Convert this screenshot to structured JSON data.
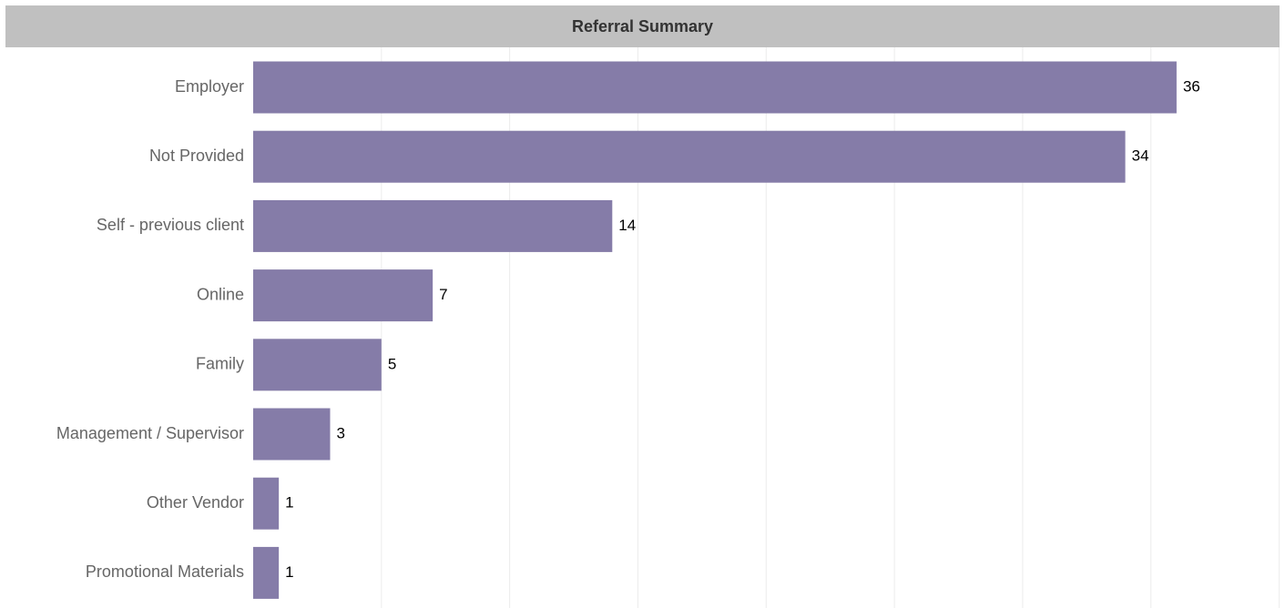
{
  "chart_data": {
    "type": "bar",
    "orientation": "horizontal",
    "title": "Referral Summary",
    "categories": [
      "Employer",
      "Not Provided",
      "Self - previous client",
      "Online",
      "Family",
      "Management / Supervisor",
      "Other Vendor",
      "Promotional Materials"
    ],
    "values": [
      36,
      34,
      14,
      7,
      5,
      3,
      1,
      1
    ],
    "xlim": [
      0,
      40
    ],
    "grid": true,
    "legend": "none",
    "colors": {
      "bar": "#857ca8",
      "title_bg": "#c0c0c0",
      "gridline": "#ececec"
    }
  }
}
